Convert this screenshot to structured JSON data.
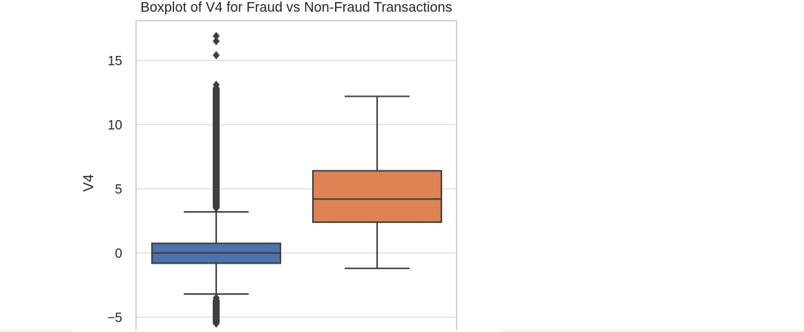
{
  "chart_data": {
    "type": "boxplot",
    "title": "Boxplot of V4 for Fraud vs Non-Fraud Transactions",
    "xlabel": "",
    "ylabel": "V4",
    "ylim": [
      -5.6,
      18.3
    ],
    "yticks": [
      {
        "value": 15,
        "label": "15"
      },
      {
        "value": 10,
        "label": "10"
      },
      {
        "value": 5,
        "label": "5"
      },
      {
        "value": 0,
        "label": "0"
      },
      {
        "value": -5,
        "label": "−5"
      }
    ],
    "grid": true,
    "legend": "none",
    "series": [
      {
        "color": "#4c72b0",
        "whisker_low": -3.2,
        "q1": -0.8,
        "median": 0.0,
        "q3": 0.75,
        "whisker_high": 3.2,
        "outliers": [
          16.9,
          16.5,
          15.4,
          13.1,
          12.4,
          11.5,
          10.5,
          9.5,
          8.5,
          7.5,
          6.5,
          5.5,
          4.5,
          3.5,
          -3.5,
          -4.0,
          -4.5,
          -5.0,
          -5.5
        ]
      },
      {
        "color": "#dd8452",
        "whisker_low": -1.2,
        "q1": 2.4,
        "median": 4.2,
        "q3": 6.4,
        "whisker_high": 12.2,
        "outliers": []
      }
    ]
  }
}
